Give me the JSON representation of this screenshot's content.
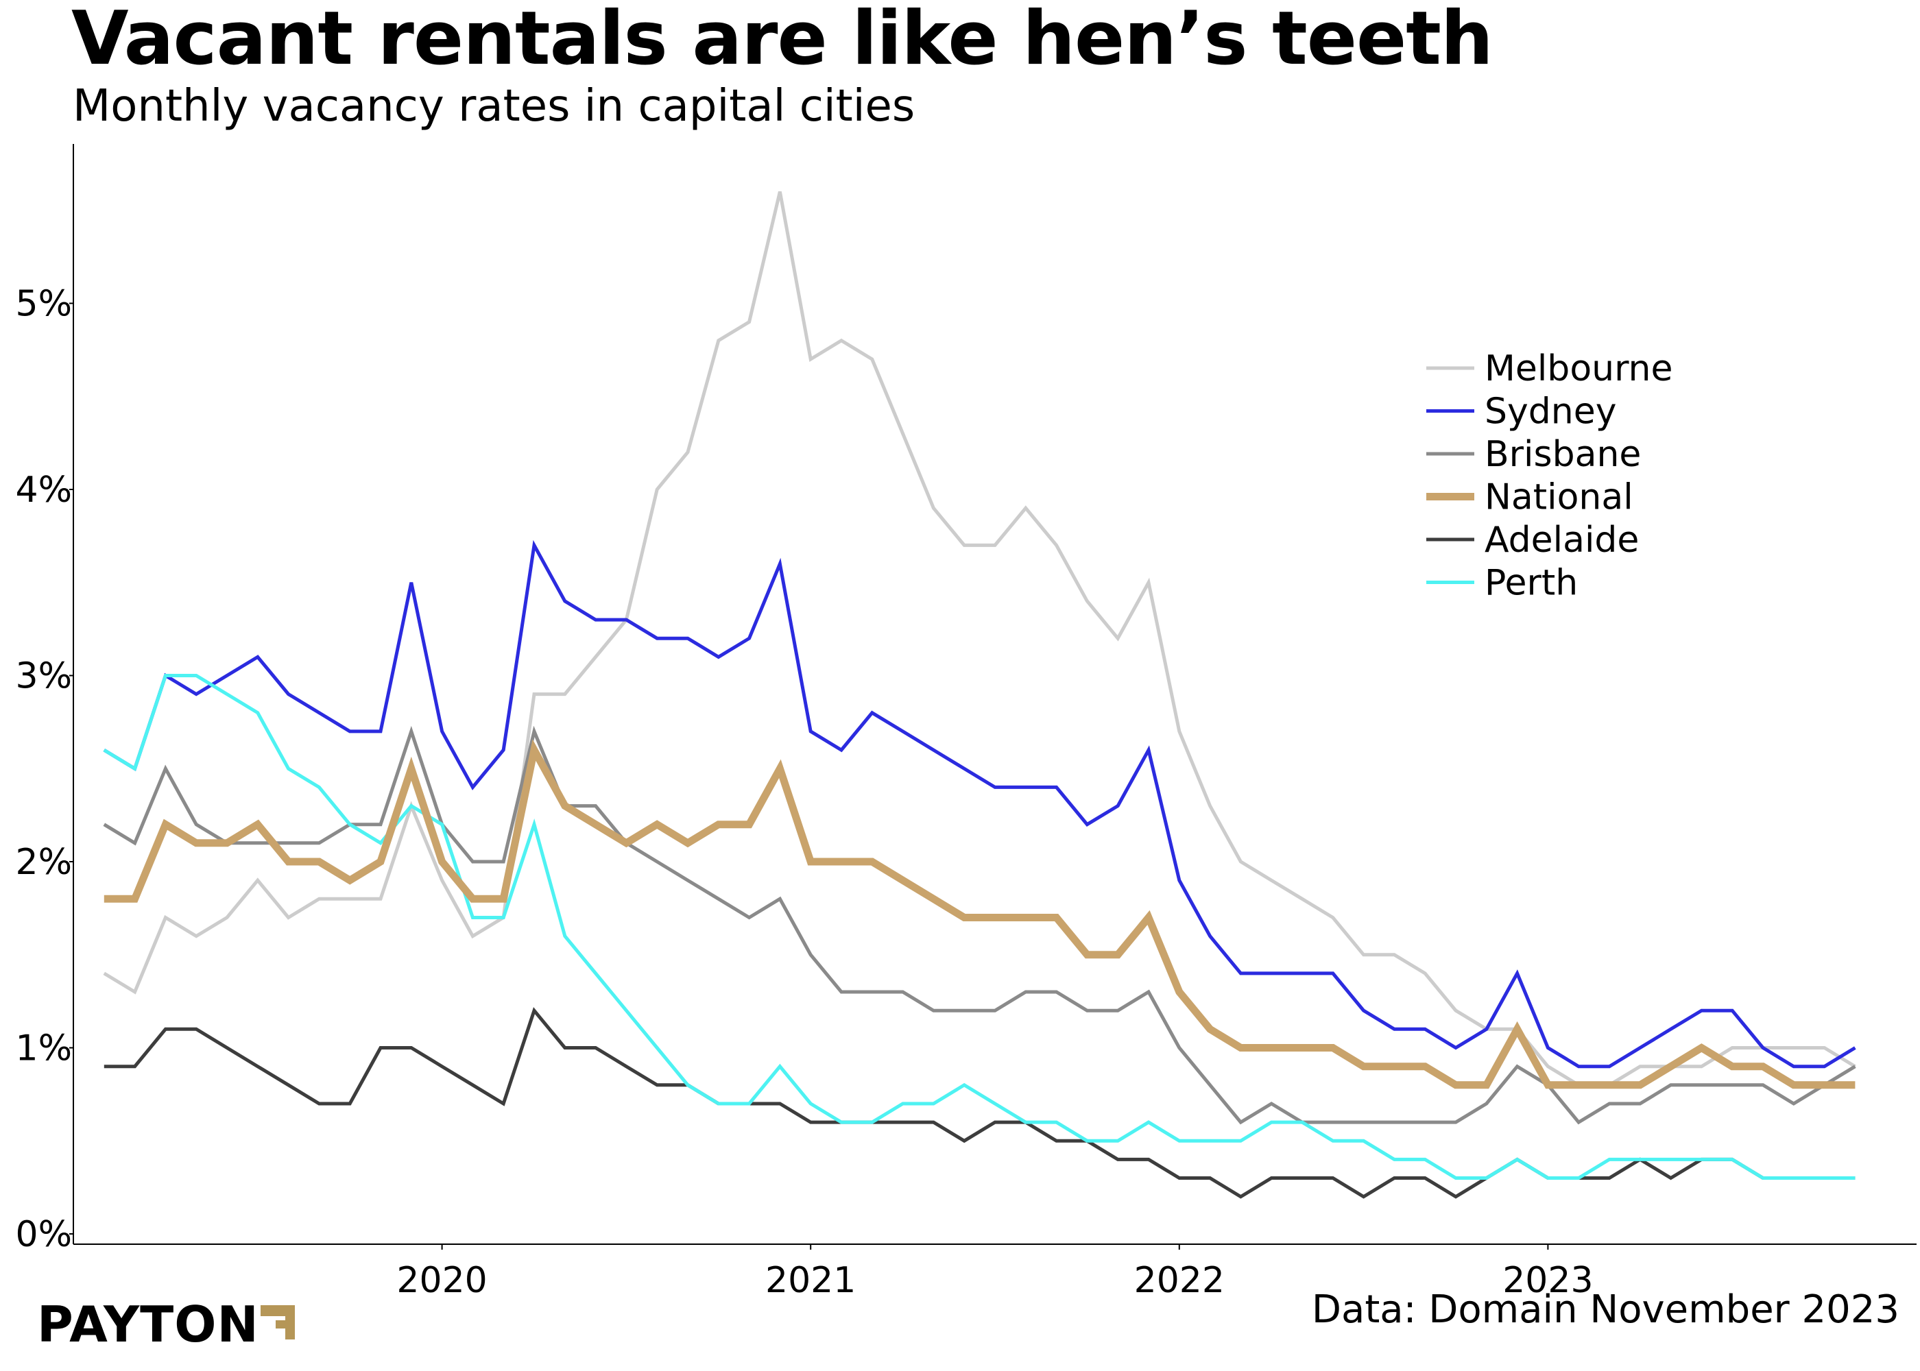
{
  "header": {
    "title": "Vacant rentals are like hen’s teeth",
    "subtitle": "Monthly vacancy rates in capital cities"
  },
  "footer": {
    "source": "Data: Domain November 2023",
    "logo_text": "PAYTON",
    "logo_icon": "payton-arrow-icon"
  },
  "colors": {
    "melbourne": "#cccccc",
    "sydney": "#2b2bdf",
    "brisbane": "#8a8a8a",
    "national": "#c9a36b",
    "adelaide": "#3d3d3d",
    "perth": "#4ef2f2",
    "logo_accent": "#b59657"
  },
  "chart_data": {
    "type": "line",
    "title": "Vacant rentals are like hen’s teeth",
    "subtitle": "Monthly vacancy rates in capital cities",
    "xlabel": "",
    "ylabel": "",
    "x_start": "2019-02",
    "x_end": "2023-11",
    "xlim": [
      2019.0,
      2024.0
    ],
    "x_ticks": [
      2020,
      2021,
      2022,
      2023
    ],
    "x_tick_labels": [
      "2020",
      "2021",
      "2022",
      "2023"
    ],
    "ylim": [
      0,
      5.7
    ],
    "y_ticks": [
      0,
      1,
      2,
      3,
      4,
      5
    ],
    "y_tick_labels": [
      "0%",
      "1%",
      "2%",
      "3%",
      "4%",
      "5%"
    ],
    "grid": false,
    "legend_position": "top-right",
    "series": [
      {
        "name": "Melbourne",
        "key": "melbourne",
        "width": 5,
        "values": [
          1.4,
          1.3,
          1.7,
          1.6,
          1.7,
          1.9,
          1.7,
          1.8,
          1.8,
          1.8,
          2.3,
          1.9,
          1.6,
          1.7,
          2.9,
          2.9,
          3.1,
          3.3,
          4.0,
          4.2,
          4.8,
          4.9,
          5.6,
          4.7,
          4.8,
          4.7,
          4.3,
          3.9,
          3.7,
          3.7,
          3.9,
          3.7,
          3.4,
          3.2,
          3.5,
          2.7,
          2.3,
          2.0,
          1.9,
          1.8,
          1.7,
          1.5,
          1.5,
          1.4,
          1.2,
          1.1,
          1.1,
          0.9,
          0.8,
          0.8,
          0.9,
          0.9,
          0.9,
          1.0,
          1.0,
          1.0,
          1.0,
          0.9
        ]
      },
      {
        "name": "Sydney",
        "key": "sydney",
        "width": 5,
        "values": [
          2.6,
          2.5,
          3.0,
          2.9,
          3.0,
          3.1,
          2.9,
          2.8,
          2.7,
          2.7,
          3.5,
          2.7,
          2.4,
          2.6,
          3.7,
          3.4,
          3.3,
          3.3,
          3.2,
          3.2,
          3.1,
          3.2,
          3.6,
          2.7,
          2.6,
          2.8,
          2.7,
          2.6,
          2.5,
          2.4,
          2.4,
          2.4,
          2.2,
          2.3,
          2.6,
          1.9,
          1.6,
          1.4,
          1.4,
          1.4,
          1.4,
          1.2,
          1.1,
          1.1,
          1.0,
          1.1,
          1.4,
          1.0,
          0.9,
          0.9,
          1.0,
          1.1,
          1.2,
          1.2,
          1.0,
          0.9,
          0.9,
          1.0
        ]
      },
      {
        "name": "Brisbane",
        "key": "brisbane",
        "width": 5,
        "values": [
          2.2,
          2.1,
          2.5,
          2.2,
          2.1,
          2.1,
          2.1,
          2.1,
          2.2,
          2.2,
          2.7,
          2.2,
          2.0,
          2.0,
          2.7,
          2.3,
          2.3,
          2.1,
          2.0,
          1.9,
          1.8,
          1.7,
          1.8,
          1.5,
          1.3,
          1.3,
          1.3,
          1.2,
          1.2,
          1.2,
          1.3,
          1.3,
          1.2,
          1.2,
          1.3,
          1.0,
          0.8,
          0.6,
          0.7,
          0.6,
          0.6,
          0.6,
          0.6,
          0.6,
          0.6,
          0.7,
          0.9,
          0.8,
          0.6,
          0.7,
          0.7,
          0.8,
          0.8,
          0.8,
          0.8,
          0.7,
          0.8,
          0.9
        ]
      },
      {
        "name": "National",
        "key": "national",
        "width": 11,
        "values": [
          1.8,
          1.8,
          2.2,
          2.1,
          2.1,
          2.2,
          2.0,
          2.0,
          1.9,
          2.0,
          2.5,
          2.0,
          1.8,
          1.8,
          2.6,
          2.3,
          2.2,
          2.1,
          2.2,
          2.1,
          2.2,
          2.2,
          2.5,
          2.0,
          2.0,
          2.0,
          1.9,
          1.8,
          1.7,
          1.7,
          1.7,
          1.7,
          1.5,
          1.5,
          1.7,
          1.3,
          1.1,
          1.0,
          1.0,
          1.0,
          1.0,
          0.9,
          0.9,
          0.9,
          0.8,
          0.8,
          1.1,
          0.8,
          0.8,
          0.8,
          0.8,
          0.9,
          1.0,
          0.9,
          0.9,
          0.8,
          0.8,
          0.8
        ]
      },
      {
        "name": "Adelaide",
        "key": "adelaide",
        "width": 5,
        "values": [
          0.9,
          0.9,
          1.1,
          1.1,
          1.0,
          0.9,
          0.8,
          0.7,
          0.7,
          1.0,
          1.0,
          0.9,
          0.8,
          0.7,
          1.2,
          1.0,
          1.0,
          0.9,
          0.8,
          0.8,
          0.7,
          0.7,
          0.7,
          0.6,
          0.6,
          0.6,
          0.6,
          0.6,
          0.5,
          0.6,
          0.6,
          0.5,
          0.5,
          0.4,
          0.4,
          0.3,
          0.3,
          0.2,
          0.3,
          0.3,
          0.3,
          0.2,
          0.3,
          0.3,
          0.2,
          0.3,
          0.4,
          0.3,
          0.3,
          0.3,
          0.4,
          0.3,
          0.4,
          0.4,
          0.3,
          0.3,
          0.3,
          0.3
        ]
      },
      {
        "name": "Perth",
        "key": "perth",
        "width": 5,
        "values": [
          2.6,
          2.5,
          3.0,
          3.0,
          2.9,
          2.8,
          2.5,
          2.4,
          2.2,
          2.1,
          2.3,
          2.2,
          1.7,
          1.7,
          2.2,
          1.6,
          1.4,
          1.2,
          1.0,
          0.8,
          0.7,
          0.7,
          0.9,
          0.7,
          0.6,
          0.6,
          0.7,
          0.7,
          0.8,
          0.7,
          0.6,
          0.6,
          0.5,
          0.5,
          0.6,
          0.5,
          0.5,
          0.5,
          0.6,
          0.6,
          0.5,
          0.5,
          0.4,
          0.4,
          0.3,
          0.3,
          0.4,
          0.3,
          0.3,
          0.4,
          0.4,
          0.4,
          0.4,
          0.4,
          0.3,
          0.3,
          0.3,
          0.3
        ]
      }
    ]
  }
}
